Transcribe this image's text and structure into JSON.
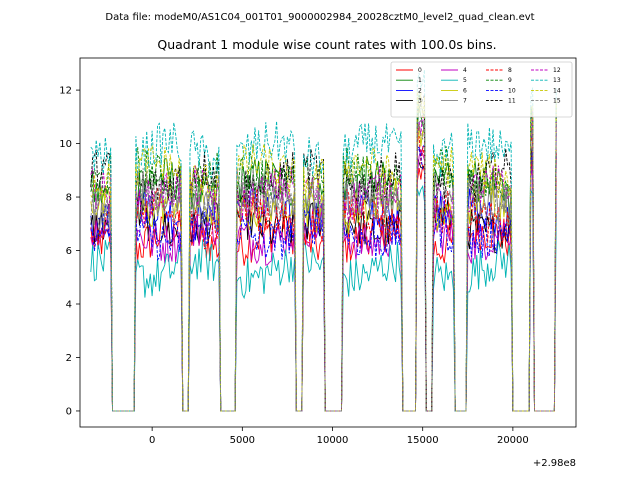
{
  "chart_data": {
    "type": "line",
    "suptitle": "Data file: modeM0/AS1C04_001T01_9000002984_20028cztM0_level2_quad_clean.evt",
    "title": "Quadrant 1 module wise count rates with 100.0s bins.",
    "xlabel": "",
    "ylabel": "",
    "x_offset_label": "+2.98e8",
    "xlim": [
      -4000,
      23500
    ],
    "ylim": [
      -0.6,
      13.2
    ],
    "xticks": [
      0,
      5000,
      10000,
      15000,
      20000
    ],
    "yticks": [
      0,
      2,
      4,
      6,
      8,
      10,
      12
    ],
    "x_start": -3400,
    "x_end": 22400,
    "bin_width": 100,
    "on_intervals": [
      [
        -3400,
        -2300
      ],
      [
        -900,
        1600
      ],
      [
        2100,
        3700
      ],
      [
        4700,
        7900
      ],
      [
        8400,
        9500
      ],
      [
        10600,
        13800
      ],
      [
        14700,
        15100
      ],
      [
        15600,
        16700
      ],
      [
        17500,
        19900
      ],
      [
        21000,
        21100
      ],
      [
        22400,
        22400
      ]
    ],
    "legend_location": "upper right",
    "legend_columns": 4,
    "series": [
      {
        "name": "0",
        "level": 6.4,
        "color": "#ff0000",
        "style": "solid"
      },
      {
        "name": "1",
        "level": 8.4,
        "color": "#008000",
        "style": "solid"
      },
      {
        "name": "2",
        "level": 7.4,
        "color": "#0000ff",
        "style": "solid"
      },
      {
        "name": "3",
        "level": 7.0,
        "color": "#000000",
        "style": "solid"
      },
      {
        "name": "4",
        "level": 6.6,
        "color": "#c000c0",
        "style": "solid"
      },
      {
        "name": "5",
        "level": 5.3,
        "color": "#00b4b4",
        "style": "solid"
      },
      {
        "name": "6",
        "level": 7.6,
        "color": "#c8c800",
        "style": "solid"
      },
      {
        "name": "7",
        "level": 7.8,
        "color": "#808080",
        "style": "solid"
      },
      {
        "name": "8",
        "level": 7.2,
        "color": "#ff0000",
        "style": "dashed"
      },
      {
        "name": "9",
        "level": 8.8,
        "color": "#008000",
        "style": "dashed"
      },
      {
        "name": "10",
        "level": 6.7,
        "color": "#0000ff",
        "style": "dashed"
      },
      {
        "name": "11",
        "level": 8.7,
        "color": "#000000",
        "style": "dashed"
      },
      {
        "name": "12",
        "level": 8.1,
        "color": "#c000c0",
        "style": "dashed"
      },
      {
        "name": "13",
        "level": 9.7,
        "color": "#00b4b4",
        "style": "dashed"
      },
      {
        "name": "14",
        "level": 8.9,
        "color": "#c8c800",
        "style": "dashed"
      },
      {
        "name": "15",
        "level": 8.0,
        "color": "#808080",
        "style": "dashed"
      }
    ]
  }
}
